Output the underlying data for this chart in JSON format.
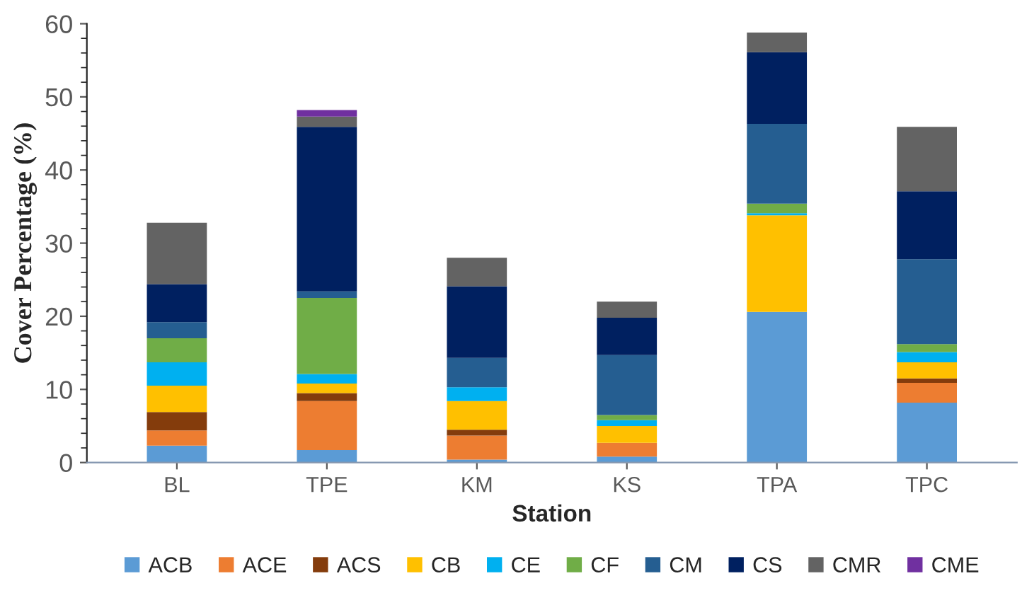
{
  "chart_data": {
    "type": "bar",
    "stacked": true,
    "xlabel": "Station",
    "ylabel": "Cover Percentage (%)",
    "categories": [
      "BL",
      "TPE",
      "KM",
      "KS",
      "TPA",
      "TPC"
    ],
    "series": [
      {
        "name": "ACB",
        "color": "#5b9bd5",
        "values": [
          2.3,
          1.7,
          0.4,
          0.8,
          20.6,
          8.2
        ]
      },
      {
        "name": "ACE",
        "color": "#ed7d31",
        "values": [
          2.1,
          6.7,
          3.3,
          1.9,
          0,
          2.7
        ]
      },
      {
        "name": "ACS",
        "color": "#843c0c",
        "values": [
          2.5,
          1.1,
          0.8,
          0,
          0,
          0.6
        ]
      },
      {
        "name": "CB",
        "color": "#ffc000",
        "values": [
          3.6,
          1.3,
          3.9,
          2.3,
          13.2,
          2.2
        ]
      },
      {
        "name": "CE",
        "color": "#00b0f0",
        "values": [
          3.2,
          1.3,
          1.9,
          0.8,
          0.3,
          1.4
        ]
      },
      {
        "name": "CF",
        "color": "#70ad47",
        "values": [
          3.3,
          10.4,
          0,
          0.7,
          1.3,
          1.1
        ]
      },
      {
        "name": "CM",
        "color": "#255e91",
        "values": [
          2.2,
          0.9,
          4.0,
          8.2,
          10.9,
          11.6
        ]
      },
      {
        "name": "CS",
        "color": "#002060",
        "values": [
          5.2,
          22.5,
          9.8,
          5.1,
          9.8,
          9.3
        ]
      },
      {
        "name": "CMR",
        "color": "#636363",
        "values": [
          8.4,
          1.4,
          3.9,
          2.2,
          2.7,
          8.8
        ]
      },
      {
        "name": "CME",
        "color": "#7030a0",
        "values": [
          0,
          0.9,
          0,
          0,
          0,
          0
        ]
      }
    ],
    "ylim": [
      0,
      60
    ],
    "yticks": [
      0,
      10,
      20,
      30,
      40,
      50,
      60
    ],
    "grid": false,
    "legend": "bottom"
  }
}
